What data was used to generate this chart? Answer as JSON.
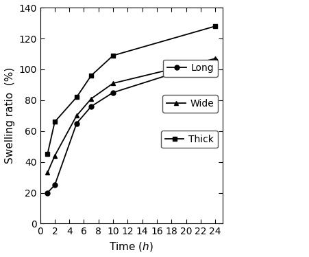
{
  "time": [
    1,
    2,
    5,
    7,
    10,
    24
  ],
  "long": [
    20,
    25,
    65,
    76,
    85,
    106
  ],
  "wide": [
    33,
    44,
    70,
    81,
    91,
    107
  ],
  "thick": [
    45,
    66,
    82,
    96,
    109,
    128
  ],
  "xlabel": "Time ($h$)",
  "ylabel": "Swelling ratio  (%)",
  "xlim": [
    0,
    25
  ],
  "ylim": [
    0,
    140
  ],
  "xticks": [
    0,
    2,
    4,
    6,
    8,
    10,
    12,
    14,
    16,
    18,
    20,
    22,
    24
  ],
  "yticks": [
    0,
    20,
    40,
    60,
    80,
    100,
    120,
    140
  ],
  "legend_labels": [
    "Long",
    "Wide",
    "Thick"
  ],
  "line_color": "#000000",
  "marker_long": "o",
  "marker_wide": "^",
  "marker_thick": "s",
  "linewidth": 1.3,
  "markersize": 5,
  "label_fontsize": 11,
  "tick_fontsize": 10,
  "legend_fontsize": 10
}
